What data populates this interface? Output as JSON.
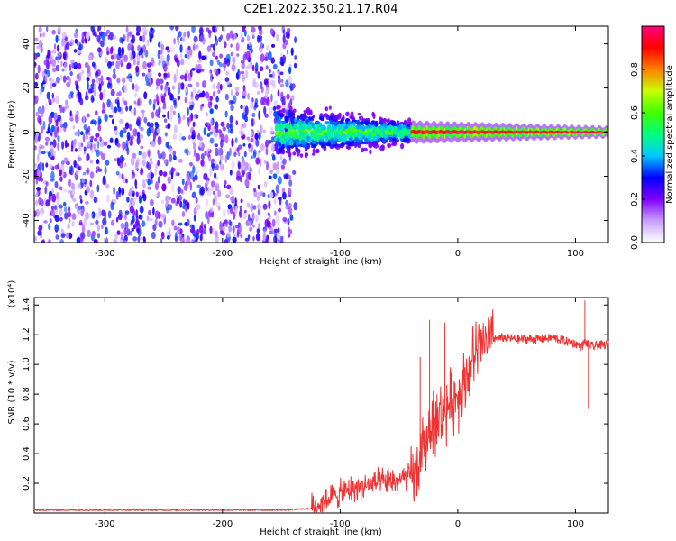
{
  "title": "C2E1.2022.350.21.17.R04",
  "chart_data": [
    {
      "type": "heatmap",
      "xlabel": "Height of straight line (km)",
      "ylabel": "Frequency (Hz)",
      "xlim": [
        -360,
        128
      ],
      "ylim": [
        -50,
        48
      ],
      "xticks": [
        -300,
        -200,
        -100,
        0,
        100
      ],
      "yticks": [
        -40,
        -20,
        0,
        20,
        40
      ],
      "colorbar": {
        "label": "Normalized spectral amplitude",
        "range": [
          0,
          1
        ],
        "ticks": [
          0.0,
          0.2,
          0.4,
          0.6,
          0.8
        ],
        "colors": [
          "#ffffff",
          "#c8a0ff",
          "#8000ff",
          "#0000ff",
          "#00c8ff",
          "#00ff80",
          "#40ff00",
          "#c8ff00",
          "#ff8000",
          "#ff0000",
          "#ff0080"
        ]
      },
      "regions": [
        {
          "x_range": [
            -360,
            -138
          ],
          "y_range": [
            -50,
            48
          ],
          "pattern": "broadband noise",
          "amplitude": [
            0.05,
            0.35
          ]
        },
        {
          "x_range": [
            -155,
            -40
          ],
          "center_hz": 0,
          "halfwidth_hz": [
            10,
            4
          ],
          "pattern": "spread signal",
          "amplitude": [
            0.2,
            0.7
          ]
        },
        {
          "x_range": [
            -40,
            128
          ],
          "center_hz": 0,
          "halfwidth_hz": [
            2,
            1
          ],
          "pattern": "narrow carrier line",
          "amplitude": [
            0.85,
            1.0
          ]
        }
      ]
    },
    {
      "type": "line",
      "xlabel": "Height of straight line (km)",
      "ylabel": "SNR (10 * v/v)",
      "y_multiplier": "(x10⁴)",
      "xlim": [
        -360,
        128
      ],
      "ylim": [
        0,
        1.45
      ],
      "xticks": [
        -300,
        -200,
        -100,
        0,
        100
      ],
      "yticks": [
        0.2,
        0.4,
        0.6,
        0.8,
        1.0,
        1.2,
        1.4
      ],
      "color": "#ee3333",
      "series": [
        {
          "x": [
            -360,
            -300,
            -250,
            -200,
            -150,
            -125,
            -110,
            -90,
            -70,
            -50,
            -40,
            -35,
            -30,
            -25,
            -22,
            -20,
            -15,
            -10,
            -5,
            0,
            5,
            10,
            15,
            20,
            25,
            30,
            40,
            50,
            60,
            70,
            80,
            90,
            100,
            105,
            108,
            110,
            112,
            115,
            120,
            128
          ],
          "y": [
            0.02,
            0.02,
            0.02,
            0.02,
            0.02,
            0.03,
            0.1,
            0.16,
            0.2,
            0.22,
            0.25,
            0.28,
            0.4,
            0.55,
            0.65,
            0.6,
            0.65,
            0.7,
            0.76,
            0.8,
            0.88,
            0.98,
            1.07,
            1.13,
            1.16,
            1.17,
            1.18,
            1.17,
            1.17,
            1.17,
            1.18,
            1.16,
            1.14,
            1.12,
            1.15,
            1.14,
            1.13,
            1.12,
            1.13,
            1.13
          ]
        }
      ],
      "spikes": [
        {
          "x": -24,
          "y": 1.3
        },
        {
          "x": -11,
          "y": 1.28
        },
        {
          "x": -32,
          "y": 1.05
        },
        {
          "x": 108,
          "y": 1.43
        },
        {
          "x": 111,
          "y": 0.7
        }
      ]
    }
  ]
}
